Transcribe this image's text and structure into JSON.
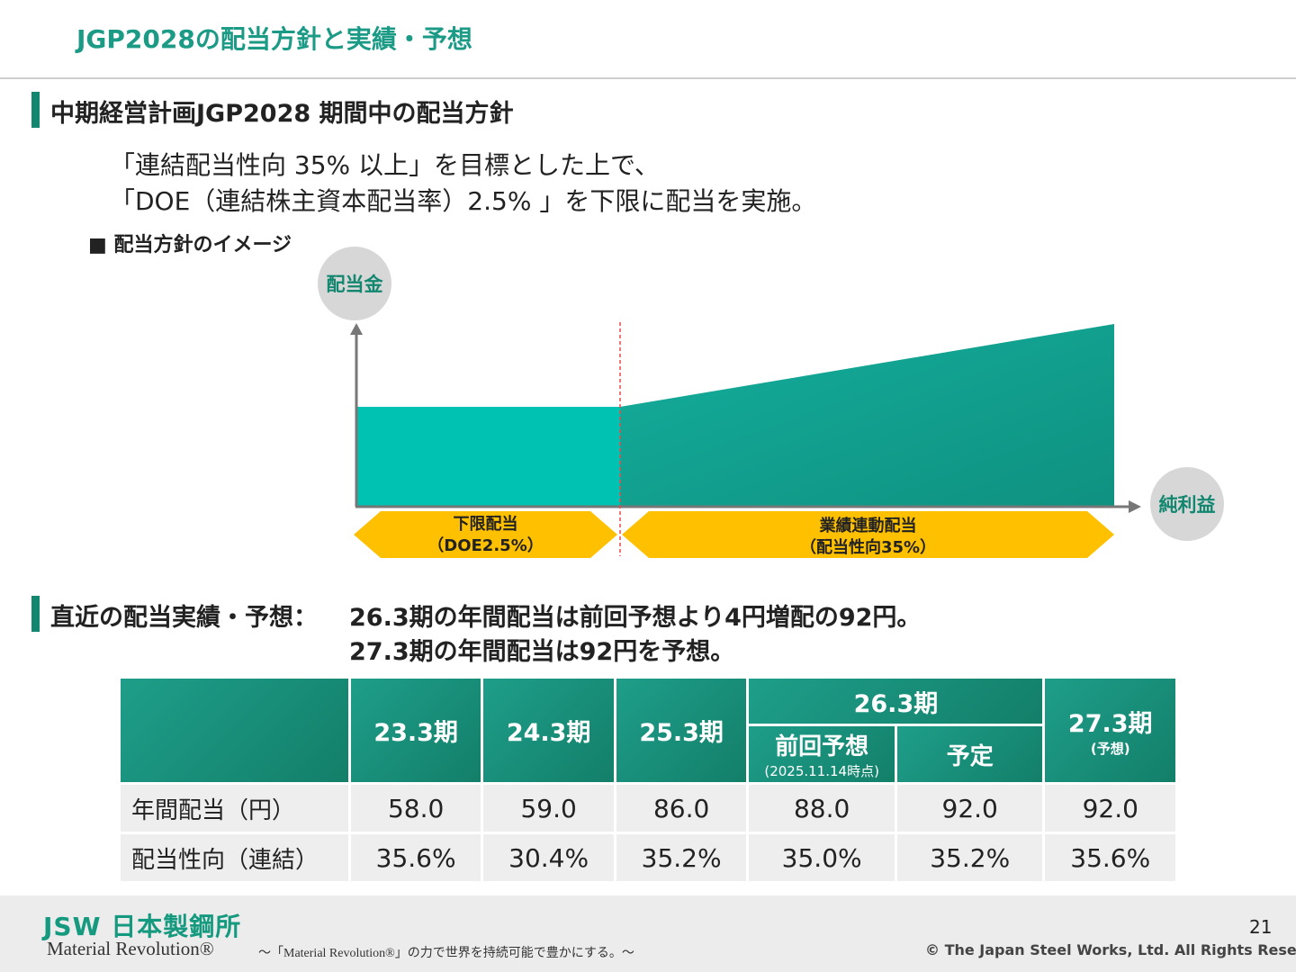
{
  "header": {
    "title": "JGP2028の配当方針と実績・予想"
  },
  "policy_section": {
    "title": "中期経営計画JGP2028 期間中の配当方針",
    "line1": "「連結配当性向 35% 以上」を目標とした上で、",
    "line2": "「DOE（連結株主資本配当率）2.5% 」を下限に配当を実施。",
    "image_heading": "■ 配当方針のイメージ"
  },
  "diagram": {
    "y_axis_label": "配当金",
    "x_axis_label": "純利益",
    "left_phase_line1": "下限配当",
    "left_phase_line2": "（DOE2.5%）",
    "right_phase_line1": "業績連動配当",
    "right_phase_line2": "（配当性向35%）",
    "colors": {
      "left_area": "#00c2b2",
      "right_area": "#12a494",
      "phase_arrow": "#ffc000",
      "divider": "#e84b4b"
    }
  },
  "results_section": {
    "title": "直近の配当実績・予想：",
    "line1": "26.3期の年間配当は前回予想より4円増配の92円。",
    "line2": "27.3期の年間配当は92円を予想。"
  },
  "table": {
    "col_23": "23.3期",
    "col_24": "24.3期",
    "col_25": "25.3期",
    "col_26": "26.3期",
    "col_26_prev": "前回予想",
    "col_26_prev_note": "(2025.11.14時点)",
    "col_26_plan": "予定",
    "col_27": "27.3期",
    "col_27_note": "(予想)",
    "rows": [
      {
        "label": "年間配当（円）",
        "values": [
          "58.0",
          "59.0",
          "86.0",
          "88.0",
          "92.0",
          "92.0"
        ]
      },
      {
        "label": "配当性向（連結）",
        "values": [
          "35.6%",
          "30.4%",
          "35.2%",
          "35.0%",
          "35.2%",
          "35.6%"
        ]
      }
    ]
  },
  "footer": {
    "logo": "JSW 日本製鋼所",
    "motto": "Material Revolution®",
    "tagline": "～「Material Revolution®」の力で世界を持続可能で豊かにする。～",
    "page_number": "21",
    "copyright": "© The Japan Steel Works, Ltd. All Rights Reserved."
  }
}
